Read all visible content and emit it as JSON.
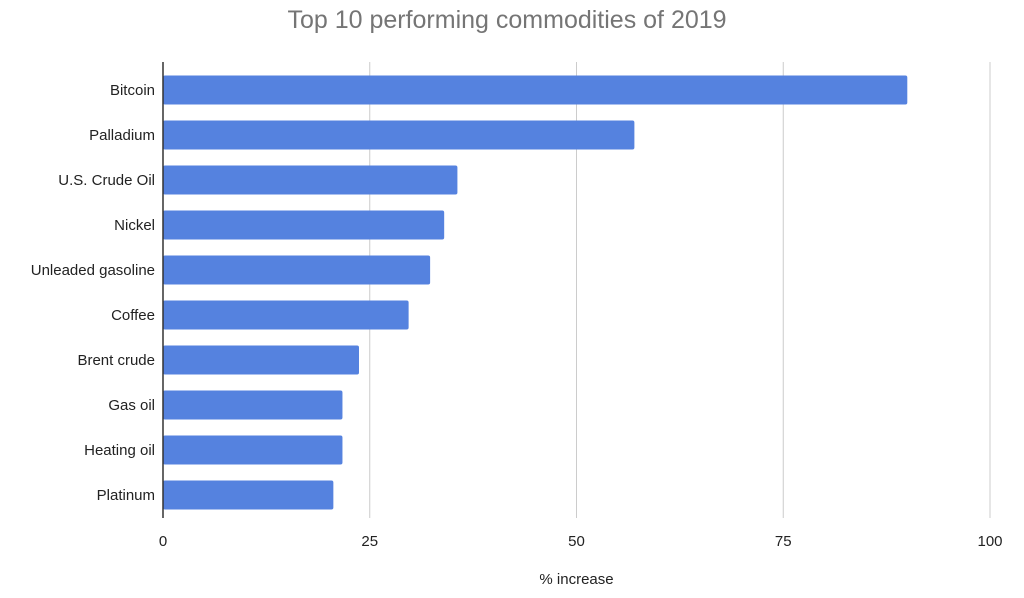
{
  "chart_data": {
    "type": "bar",
    "orientation": "horizontal",
    "title": "Top 10 performing commodities of 2019",
    "xlabel": "% increase",
    "ylabel": "",
    "categories": [
      "Bitcoin",
      "Palladium",
      "U.S. Crude Oil",
      "Nickel",
      "Unleaded gasoline",
      "Coffee",
      "Brent crude",
      "Gas oil",
      "Heating oil",
      "Platinum"
    ],
    "values": [
      90,
      57,
      35.6,
      34,
      32.3,
      29.7,
      23.7,
      21.7,
      21.7,
      20.6
    ],
    "xlim": [
      0,
      100
    ],
    "xticks": [
      "0",
      "25",
      "50",
      "75",
      "100"
    ],
    "grid": true,
    "legend": "none",
    "bar_color": "#5582df",
    "grid_color": "#cccccc",
    "axis_color": "#333333"
  }
}
